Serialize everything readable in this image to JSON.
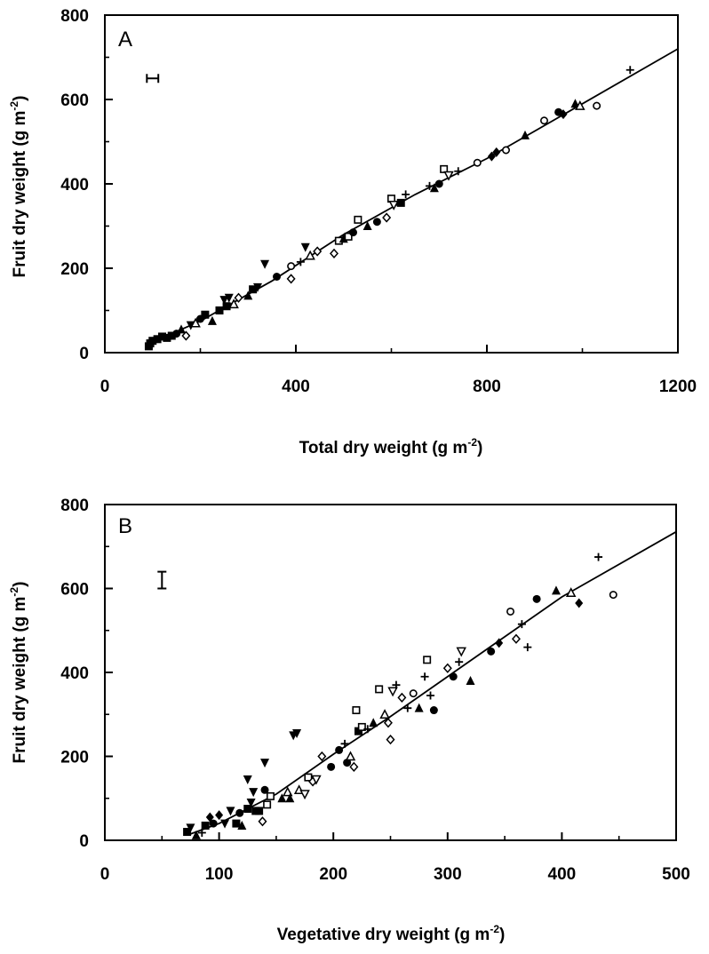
{
  "chart_data": [
    {
      "type": "scatter",
      "panel_label": "A",
      "xlabel": "Total dry weight (g m",
      "xlabel_sup": "-2",
      "xlabel_tail": ")",
      "ylabel": "Fruit dry weight (g m",
      "ylabel_sup": "-2",
      "ylabel_tail": ")",
      "xlim": [
        0,
        1200
      ],
      "ylim": [
        0,
        800
      ],
      "xticks": [
        "0",
        "400",
        "800",
        "1200"
      ],
      "xtick_values": [
        0,
        400,
        800,
        1200
      ],
      "yticks": [
        "0",
        "200",
        "400",
        "600",
        "800"
      ],
      "ytick_values": [
        0,
        200,
        400,
        600,
        800
      ],
      "grid": false,
      "error_bar": {
        "x": 100,
        "y": 650,
        "dx": 12,
        "orientation": "horizontal"
      },
      "fit_line": [
        [
          90,
          20
        ],
        [
          200,
          75
        ],
        [
          350,
          170
        ],
        [
          500,
          280
        ],
        [
          650,
          375
        ],
        [
          800,
          460
        ],
        [
          1000,
          590
        ],
        [
          1200,
          720
        ]
      ],
      "points": [
        {
          "x": 92,
          "y": 15,
          "m": "sq_f"
        },
        {
          "x": 95,
          "y": 22,
          "m": "sq_f"
        },
        {
          "x": 100,
          "y": 28,
          "m": "sq_f"
        },
        {
          "x": 110,
          "y": 32,
          "m": "sq_f"
        },
        {
          "x": 120,
          "y": 38,
          "m": "sq_f"
        },
        {
          "x": 130,
          "y": 35,
          "m": "sq_f"
        },
        {
          "x": 140,
          "y": 40,
          "m": "sq_f"
        },
        {
          "x": 150,
          "y": 45,
          "m": "circ_f"
        },
        {
          "x": 160,
          "y": 55,
          "m": "tri_f"
        },
        {
          "x": 170,
          "y": 40,
          "m": "dia_o"
        },
        {
          "x": 180,
          "y": 65,
          "m": "tri_d_f"
        },
        {
          "x": 190,
          "y": 70,
          "m": "tri_o"
        },
        {
          "x": 200,
          "y": 80,
          "m": "circ_f"
        },
        {
          "x": 210,
          "y": 90,
          "m": "sq_f"
        },
        {
          "x": 225,
          "y": 75,
          "m": "tri_f"
        },
        {
          "x": 240,
          "y": 100,
          "m": "sq_f"
        },
        {
          "x": 250,
          "y": 125,
          "m": "tri_d_f"
        },
        {
          "x": 255,
          "y": 110,
          "m": "sq_f"
        },
        {
          "x": 260,
          "y": 130,
          "m": "tri_d_f"
        },
        {
          "x": 270,
          "y": 115,
          "m": "tri_o"
        },
        {
          "x": 280,
          "y": 130,
          "m": "dia_o"
        },
        {
          "x": 300,
          "y": 135,
          "m": "tri_f"
        },
        {
          "x": 310,
          "y": 150,
          "m": "sq_f"
        },
        {
          "x": 320,
          "y": 155,
          "m": "tri_d_f"
        },
        {
          "x": 335,
          "y": 210,
          "m": "tri_d_f"
        },
        {
          "x": 360,
          "y": 180,
          "m": "circ_f"
        },
        {
          "x": 390,
          "y": 175,
          "m": "dia_o"
        },
        {
          "x": 390,
          "y": 205,
          "m": "circ_o"
        },
        {
          "x": 410,
          "y": 215,
          "m": "plus"
        },
        {
          "x": 420,
          "y": 250,
          "m": "tri_d_f"
        },
        {
          "x": 430,
          "y": 230,
          "m": "tri_o"
        },
        {
          "x": 445,
          "y": 240,
          "m": "dia_o"
        },
        {
          "x": 480,
          "y": 235,
          "m": "dia_o"
        },
        {
          "x": 490,
          "y": 265,
          "m": "sq_o"
        },
        {
          "x": 500,
          "y": 270,
          "m": "tri_f"
        },
        {
          "x": 510,
          "y": 275,
          "m": "sq_o"
        },
        {
          "x": 520,
          "y": 285,
          "m": "circ_f"
        },
        {
          "x": 530,
          "y": 315,
          "m": "sq_o"
        },
        {
          "x": 550,
          "y": 300,
          "m": "tri_f"
        },
        {
          "x": 570,
          "y": 310,
          "m": "circ_f"
        },
        {
          "x": 590,
          "y": 320,
          "m": "dia_o"
        },
        {
          "x": 600,
          "y": 365,
          "m": "sq_o"
        },
        {
          "x": 605,
          "y": 350,
          "m": "tri_d_o"
        },
        {
          "x": 620,
          "y": 355,
          "m": "sq_f"
        },
        {
          "x": 630,
          "y": 375,
          "m": "plus"
        },
        {
          "x": 680,
          "y": 395,
          "m": "plus"
        },
        {
          "x": 690,
          "y": 390,
          "m": "tri_f"
        },
        {
          "x": 700,
          "y": 400,
          "m": "circ_f"
        },
        {
          "x": 710,
          "y": 435,
          "m": "sq_o"
        },
        {
          "x": 720,
          "y": 420,
          "m": "tri_d_o"
        },
        {
          "x": 740,
          "y": 430,
          "m": "plus"
        },
        {
          "x": 780,
          "y": 450,
          "m": "circ_o"
        },
        {
          "x": 810,
          "y": 465,
          "m": "dia_f"
        },
        {
          "x": 820,
          "y": 475,
          "m": "dia_f"
        },
        {
          "x": 840,
          "y": 480,
          "m": "circ_o"
        },
        {
          "x": 880,
          "y": 515,
          "m": "tri_f"
        },
        {
          "x": 920,
          "y": 550,
          "m": "circ_o"
        },
        {
          "x": 950,
          "y": 570,
          "m": "circ_f"
        },
        {
          "x": 960,
          "y": 565,
          "m": "dia_f"
        },
        {
          "x": 985,
          "y": 590,
          "m": "tri_f"
        },
        {
          "x": 995,
          "y": 585,
          "m": "tri_o"
        },
        {
          "x": 1030,
          "y": 585,
          "m": "circ_o"
        },
        {
          "x": 1100,
          "y": 670,
          "m": "plus"
        }
      ]
    },
    {
      "type": "scatter",
      "panel_label": "B",
      "xlabel": "Vegetative dry weight (g m",
      "xlabel_sup": "-2",
      "xlabel_tail": ")",
      "ylabel": "Fruit dry weight (g m",
      "ylabel_sup": "-2",
      "ylabel_tail": ")",
      "xlim": [
        0,
        500
      ],
      "ylim": [
        0,
        800
      ],
      "xticks": [
        "0",
        "100",
        "200",
        "300",
        "400",
        "500"
      ],
      "xtick_values": [
        0,
        100,
        200,
        300,
        400,
        500
      ],
      "yticks": [
        "0",
        "200",
        "400",
        "600",
        "800"
      ],
      "ytick_values": [
        0,
        200,
        400,
        600,
        800
      ],
      "grid": false,
      "error_bar": {
        "x": 50,
        "y": 620,
        "dy": 20,
        "orientation": "vertical"
      },
      "fit_line": [
        [
          75,
          15
        ],
        [
          100,
          40
        ],
        [
          150,
          110
        ],
        [
          200,
          205
        ],
        [
          250,
          295
        ],
        [
          300,
          390
        ],
        [
          400,
          580
        ],
        [
          500,
          735
        ]
      ],
      "points": [
        {
          "x": 72,
          "y": 20,
          "m": "sq_f"
        },
        {
          "x": 75,
          "y": 30,
          "m": "tri_d_f"
        },
        {
          "x": 80,
          "y": 12,
          "m": "tri_f"
        },
        {
          "x": 85,
          "y": 18,
          "m": "plus"
        },
        {
          "x": 88,
          "y": 35,
          "m": "sq_f"
        },
        {
          "x": 92,
          "y": 55,
          "m": "dia_f"
        },
        {
          "x": 95,
          "y": 40,
          "m": "circ_f"
        },
        {
          "x": 100,
          "y": 60,
          "m": "dia_f"
        },
        {
          "x": 105,
          "y": 40,
          "m": "tri_d_f"
        },
        {
          "x": 110,
          "y": 70,
          "m": "tri_d_f"
        },
        {
          "x": 115,
          "y": 40,
          "m": "sq_f"
        },
        {
          "x": 118,
          "y": 65,
          "m": "circ_f"
        },
        {
          "x": 120,
          "y": 35,
          "m": "tri_f"
        },
        {
          "x": 125,
          "y": 145,
          "m": "tri_d_f"
        },
        {
          "x": 125,
          "y": 75,
          "m": "sq_f"
        },
        {
          "x": 128,
          "y": 90,
          "m": "tri_d_f"
        },
        {
          "x": 130,
          "y": 115,
          "m": "tri_d_f"
        },
        {
          "x": 132,
          "y": 70,
          "m": "sq_f"
        },
        {
          "x": 135,
          "y": 70,
          "m": "sq_f"
        },
        {
          "x": 138,
          "y": 45,
          "m": "dia_o"
        },
        {
          "x": 140,
          "y": 120,
          "m": "circ_f"
        },
        {
          "x": 140,
          "y": 185,
          "m": "tri_d_f"
        },
        {
          "x": 142,
          "y": 85,
          "m": "sq_o"
        },
        {
          "x": 145,
          "y": 105,
          "m": "sq_o"
        },
        {
          "x": 155,
          "y": 100,
          "m": "tri_f"
        },
        {
          "x": 160,
          "y": 115,
          "m": "tri_o"
        },
        {
          "x": 162,
          "y": 100,
          "m": "tri_f"
        },
        {
          "x": 165,
          "y": 250,
          "m": "tri_d_f"
        },
        {
          "x": 168,
          "y": 255,
          "m": "tri_d_f"
        },
        {
          "x": 170,
          "y": 120,
          "m": "tri_o"
        },
        {
          "x": 175,
          "y": 110,
          "m": "tri_d_o"
        },
        {
          "x": 178,
          "y": 150,
          "m": "sq_o"
        },
        {
          "x": 182,
          "y": 140,
          "m": "dia_o"
        },
        {
          "x": 185,
          "y": 145,
          "m": "tri_d_o"
        },
        {
          "x": 190,
          "y": 200,
          "m": "dia_o"
        },
        {
          "x": 198,
          "y": 175,
          "m": "circ_f"
        },
        {
          "x": 205,
          "y": 215,
          "m": "circ_f"
        },
        {
          "x": 210,
          "y": 230,
          "m": "plus"
        },
        {
          "x": 212,
          "y": 185,
          "m": "circ_f"
        },
        {
          "x": 215,
          "y": 200,
          "m": "tri_o"
        },
        {
          "x": 218,
          "y": 175,
          "m": "dia_o"
        },
        {
          "x": 220,
          "y": 310,
          "m": "sq_o"
        },
        {
          "x": 222,
          "y": 260,
          "m": "sq_f"
        },
        {
          "x": 225,
          "y": 270,
          "m": "sq_o"
        },
        {
          "x": 230,
          "y": 265,
          "m": "plus"
        },
        {
          "x": 235,
          "y": 280,
          "m": "tri_f"
        },
        {
          "x": 240,
          "y": 360,
          "m": "sq_o"
        },
        {
          "x": 245,
          "y": 300,
          "m": "tri_o"
        },
        {
          "x": 248,
          "y": 280,
          "m": "dia_o"
        },
        {
          "x": 250,
          "y": 240,
          "m": "dia_o"
        },
        {
          "x": 252,
          "y": 355,
          "m": "tri_d_o"
        },
        {
          "x": 255,
          "y": 370,
          "m": "plus"
        },
        {
          "x": 260,
          "y": 340,
          "m": "dia_o"
        },
        {
          "x": 265,
          "y": 315,
          "m": "plus"
        },
        {
          "x": 270,
          "y": 350,
          "m": "circ_o"
        },
        {
          "x": 275,
          "y": 315,
          "m": "tri_f"
        },
        {
          "x": 280,
          "y": 390,
          "m": "plus"
        },
        {
          "x": 282,
          "y": 430,
          "m": "sq_o"
        },
        {
          "x": 285,
          "y": 345,
          "m": "plus"
        },
        {
          "x": 288,
          "y": 310,
          "m": "circ_f"
        },
        {
          "x": 300,
          "y": 410,
          "m": "dia_o"
        },
        {
          "x": 305,
          "y": 390,
          "m": "circ_f"
        },
        {
          "x": 310,
          "y": 425,
          "m": "plus"
        },
        {
          "x": 312,
          "y": 450,
          "m": "tri_d_o"
        },
        {
          "x": 320,
          "y": 380,
          "m": "tri_f"
        },
        {
          "x": 338,
          "y": 450,
          "m": "circ_f"
        },
        {
          "x": 345,
          "y": 470,
          "m": "dia_f"
        },
        {
          "x": 355,
          "y": 545,
          "m": "circ_o"
        },
        {
          "x": 360,
          "y": 480,
          "m": "dia_o"
        },
        {
          "x": 365,
          "y": 515,
          "m": "plus"
        },
        {
          "x": 370,
          "y": 460,
          "m": "plus"
        },
        {
          "x": 378,
          "y": 575,
          "m": "circ_f"
        },
        {
          "x": 395,
          "y": 595,
          "m": "tri_f"
        },
        {
          "x": 408,
          "y": 590,
          "m": "tri_o"
        },
        {
          "x": 415,
          "y": 565,
          "m": "dia_f"
        },
        {
          "x": 432,
          "y": 675,
          "m": "plus"
        },
        {
          "x": 445,
          "y": 585,
          "m": "circ_o"
        }
      ]
    }
  ]
}
